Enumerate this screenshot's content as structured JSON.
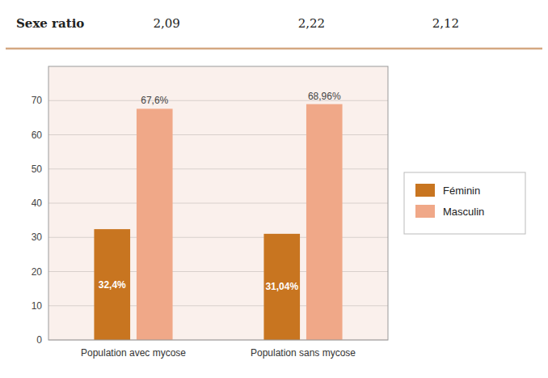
{
  "chart_data": {
    "type": "bar",
    "title": "Sexe ratio",
    "annotations": [
      "2,09",
      "2,22",
      "2,12"
    ],
    "categories": [
      "Population avec mycose",
      "Population sans mycose"
    ],
    "series": [
      {
        "name": "Féminin",
        "color": "#C87520",
        "values": [
          32.4,
          31.04
        ],
        "value_labels": [
          "32,4%",
          "31,04%"
        ]
      },
      {
        "name": "Masculin",
        "color": "#F0A888",
        "values": [
          67.6,
          68.96
        ],
        "value_labels": [
          "67,6%",
          "68,96%"
        ]
      }
    ],
    "ylim": [
      0,
      80
    ],
    "yticks": [
      0,
      10,
      20,
      30,
      40,
      50,
      60,
      70
    ],
    "grid": true,
    "legend": "right",
    "data_labels": true
  }
}
